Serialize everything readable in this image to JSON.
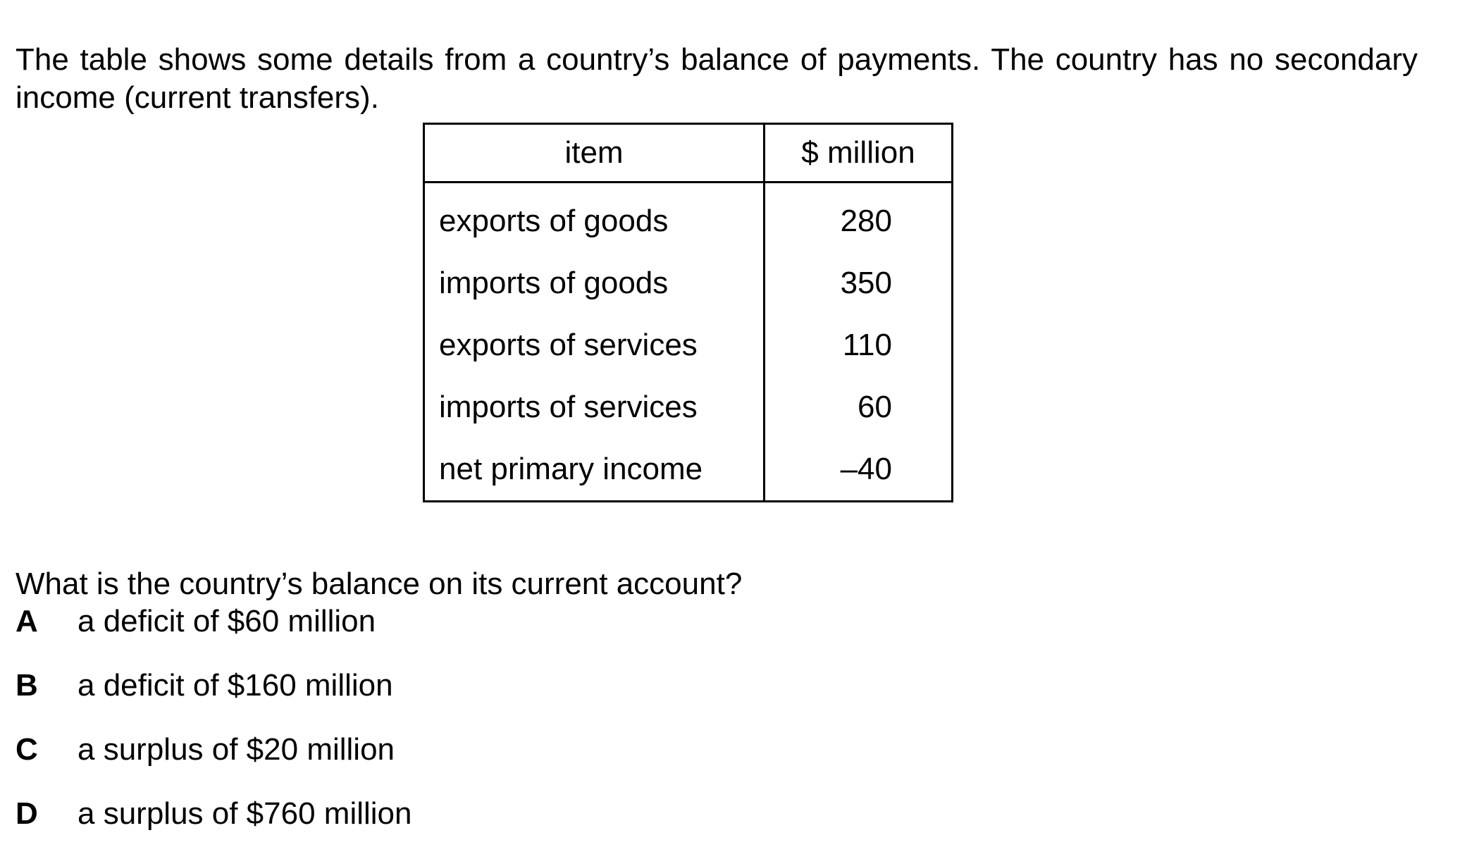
{
  "intro": "The table shows some details from a country’s balance of payments. The country has no secondary income (current transfers).",
  "table": {
    "headers": [
      "item",
      "$ million"
    ],
    "rows": [
      {
        "item": "exports of goods",
        "value": "280"
      },
      {
        "item": "imports of goods",
        "value": "350"
      },
      {
        "item": "exports of services",
        "value": "110"
      },
      {
        "item": "imports of services",
        "value": "60"
      },
      {
        "item": "net primary income",
        "value": "–40"
      }
    ]
  },
  "question": "What is the country’s balance on its current account?",
  "options": [
    {
      "letter": "A",
      "text": "a deficit of $60 million"
    },
    {
      "letter": "B",
      "text": "a deficit of $160 million"
    },
    {
      "letter": "C",
      "text": "a surplus of $20 million"
    },
    {
      "letter": "D",
      "text": "a surplus of $760 million"
    }
  ]
}
